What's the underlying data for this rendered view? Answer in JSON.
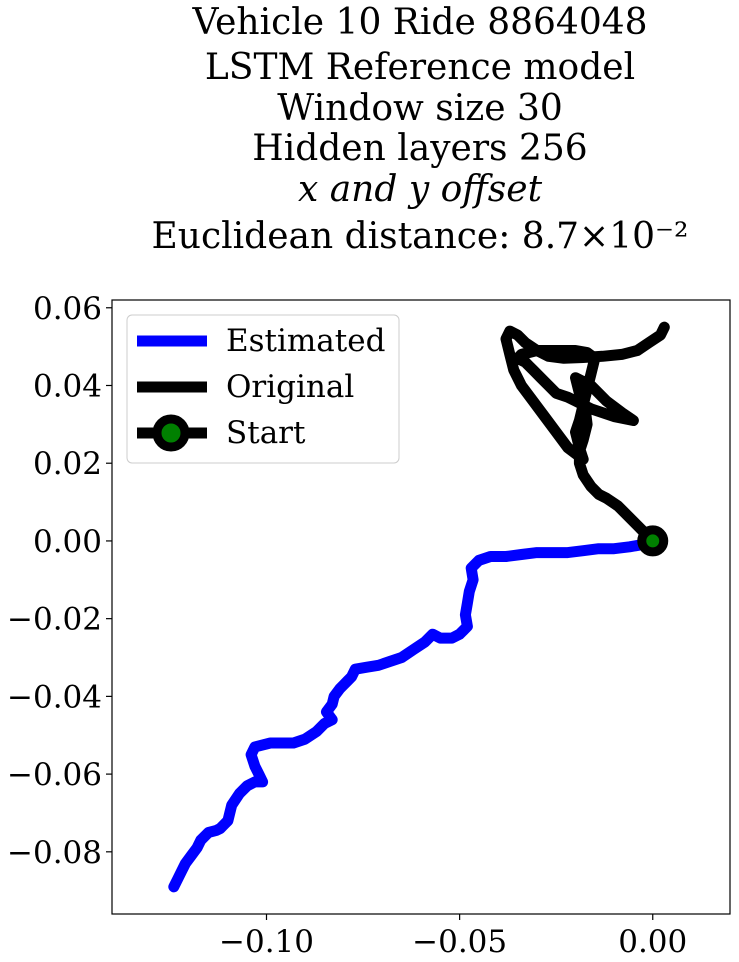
{
  "chart_data": {
    "type": "line",
    "title_lines": [
      "Vehicle 10 Ride 8864048",
      "LSTM Reference model",
      "Window size 30",
      "Hidden layers 256",
      "x and y offset",
      "Euclidean distance: 8.7×10⁻²"
    ],
    "xlabel": "",
    "ylabel": "",
    "xlim": [
      -0.14,
      0.02
    ],
    "ylim": [
      -0.096,
      0.062
    ],
    "xticks": [
      -0.1,
      -0.05,
      0.0
    ],
    "xtick_labels": [
      "−0.10",
      "−0.05",
      "0.00"
    ],
    "yticks": [
      0.06,
      0.04,
      0.02,
      0.0,
      -0.02,
      -0.04,
      -0.06,
      -0.08
    ],
    "ytick_labels": [
      "0.06",
      "0.04",
      "0.02",
      "0.00",
      "−0.02",
      "−0.04",
      "−0.06",
      "−0.08"
    ],
    "grid": false,
    "legend_position": "top-left",
    "series": [
      {
        "name": "Estimated",
        "color": "#0000ff",
        "x": [
          0.0,
          -0.003,
          -0.006,
          -0.01,
          -0.014,
          -0.018,
          -0.022,
          -0.026,
          -0.03,
          -0.034,
          -0.038,
          -0.042,
          -0.045,
          -0.047,
          -0.0465,
          -0.0475,
          -0.048,
          -0.0485,
          -0.048,
          -0.049,
          -0.05,
          -0.052,
          -0.054,
          -0.055,
          -0.057,
          -0.059,
          -0.062,
          -0.065,
          -0.068,
          -0.071,
          -0.074,
          -0.077,
          -0.078,
          -0.079,
          -0.08,
          -0.081,
          -0.0825,
          -0.083,
          -0.0845,
          -0.083,
          -0.085,
          -0.087,
          -0.09,
          -0.093,
          -0.096,
          -0.099,
          -0.103,
          -0.104,
          -0.103,
          -0.102,
          -0.101,
          -0.103,
          -0.105,
          -0.107,
          -0.109,
          -0.11,
          -0.111,
          -0.112,
          -0.113,
          -0.115,
          -0.117,
          -0.118,
          -0.1195,
          -0.121,
          -0.122,
          -0.123,
          -0.124
        ],
        "y": [
          0.0,
          -0.001,
          -0.0015,
          -0.002,
          -0.002,
          -0.0025,
          -0.003,
          -0.003,
          -0.003,
          -0.0035,
          -0.004,
          -0.004,
          -0.005,
          -0.007,
          -0.01,
          -0.013,
          -0.016,
          -0.019,
          -0.022,
          -0.023,
          -0.024,
          -0.025,
          -0.025,
          -0.025,
          -0.024,
          -0.026,
          -0.028,
          -0.03,
          -0.031,
          -0.032,
          -0.0325,
          -0.033,
          -0.035,
          -0.036,
          -0.037,
          -0.038,
          -0.04,
          -0.042,
          -0.044,
          -0.046,
          -0.047,
          -0.049,
          -0.051,
          -0.052,
          -0.052,
          -0.052,
          -0.053,
          -0.055,
          -0.058,
          -0.06,
          -0.062,
          -0.062,
          -0.063,
          -0.065,
          -0.068,
          -0.072,
          -0.073,
          -0.074,
          -0.0745,
          -0.075,
          -0.077,
          -0.079,
          -0.081,
          -0.083,
          -0.085,
          -0.087,
          -0.089
        ]
      },
      {
        "name": "Original",
        "color": "#000000",
        "x": [
          0.0,
          -0.003,
          -0.006,
          -0.009,
          -0.012,
          -0.014,
          -0.016,
          -0.018,
          -0.019,
          -0.019,
          -0.018,
          -0.017,
          -0.0175,
          -0.019,
          -0.02,
          -0.016,
          -0.012,
          -0.008,
          -0.005,
          -0.01,
          -0.016,
          -0.02,
          -0.022,
          -0.025,
          -0.027,
          -0.029,
          -0.031,
          -0.032,
          -0.033,
          -0.035,
          -0.034,
          -0.032,
          -0.03,
          -0.027,
          -0.024,
          -0.02,
          -0.017,
          -0.015,
          -0.016,
          -0.017,
          -0.018,
          -0.019,
          -0.02,
          -0.019,
          -0.018,
          -0.022,
          -0.025,
          -0.028,
          -0.031,
          -0.034,
          -0.036,
          -0.037,
          -0.038,
          -0.037,
          -0.035,
          -0.033,
          -0.03,
          -0.027,
          -0.023,
          -0.018,
          -0.013,
          -0.008,
          -0.004,
          -0.001,
          0.002,
          0.003
        ],
        "y": [
          0.0,
          0.003,
          0.006,
          0.009,
          0.011,
          0.012,
          0.014,
          0.017,
          0.02,
          0.023,
          0.026,
          0.03,
          0.034,
          0.038,
          0.042,
          0.04,
          0.036,
          0.033,
          0.031,
          0.032,
          0.034,
          0.036,
          0.037,
          0.038,
          0.04,
          0.042,
          0.044,
          0.045,
          0.046,
          0.047,
          0.048,
          0.0485,
          0.049,
          0.049,
          0.049,
          0.049,
          0.0485,
          0.047,
          0.043,
          0.039,
          0.035,
          0.031,
          0.028,
          0.024,
          0.021,
          0.024,
          0.028,
          0.032,
          0.036,
          0.04,
          0.044,
          0.048,
          0.052,
          0.054,
          0.053,
          0.051,
          0.049,
          0.0475,
          0.047,
          0.0472,
          0.0475,
          0.048,
          0.049,
          0.051,
          0.053,
          0.055
        ]
      }
    ],
    "start_point": {
      "name": "Start",
      "x": 0.0,
      "y": 0.0,
      "edge_color": "#000000",
      "face_color": "#008000"
    }
  }
}
